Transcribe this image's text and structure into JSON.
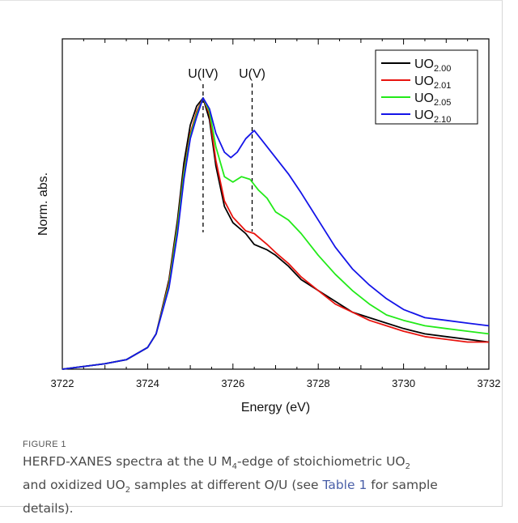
{
  "chart_data": {
    "type": "line",
    "xlabel": "Energy (eV)",
    "ylabel": "Norm. abs.",
    "xlim": [
      3722,
      3732
    ],
    "x_ticks": [
      "3722",
      "3724",
      "3726",
      "3728",
      "3730",
      "3732"
    ],
    "annotations": [
      {
        "label": "U(IV)",
        "x": 3725.3
      },
      {
        "label": "U(V)",
        "x": 3726.45
      }
    ],
    "legend_position": "top-right",
    "series": [
      {
        "name": "UO",
        "sub": "2.00",
        "color": "#000000",
        "x": [
          3722,
          3723,
          3723.5,
          3724,
          3724.2,
          3724.5,
          3724.7,
          3724.85,
          3725,
          3725.15,
          3725.3,
          3725.45,
          3725.6,
          3725.8,
          3726,
          3726.3,
          3726.5,
          3726.8,
          3727,
          3727.3,
          3727.6,
          3728,
          3728.4,
          3728.8,
          3729.2,
          3729.6,
          3730,
          3730.5,
          3731,
          3731.5,
          3732
        ],
        "y": [
          0,
          0.02,
          0.035,
          0.08,
          0.13,
          0.33,
          0.55,
          0.76,
          0.9,
          0.97,
          1.0,
          0.92,
          0.75,
          0.6,
          0.54,
          0.5,
          0.46,
          0.44,
          0.42,
          0.38,
          0.33,
          0.29,
          0.25,
          0.21,
          0.19,
          0.17,
          0.15,
          0.13,
          0.12,
          0.11,
          0.1
        ]
      },
      {
        "name": "UO",
        "sub": "2.01",
        "color": "#e8140f",
        "x": [
          3722,
          3723,
          3723.5,
          3724,
          3724.2,
          3724.5,
          3724.7,
          3724.85,
          3725,
          3725.15,
          3725.3,
          3725.45,
          3725.6,
          3725.8,
          3726,
          3726.3,
          3726.5,
          3726.8,
          3727,
          3727.3,
          3727.6,
          3728,
          3728.4,
          3728.8,
          3729.2,
          3729.6,
          3730,
          3730.5,
          3731,
          3731.5,
          3732
        ],
        "y": [
          0,
          0.02,
          0.035,
          0.08,
          0.13,
          0.32,
          0.53,
          0.73,
          0.87,
          0.95,
          1.0,
          0.94,
          0.77,
          0.62,
          0.56,
          0.51,
          0.5,
          0.46,
          0.43,
          0.39,
          0.34,
          0.29,
          0.24,
          0.21,
          0.18,
          0.16,
          0.14,
          0.12,
          0.11,
          0.1,
          0.1
        ]
      },
      {
        "name": "UO",
        "sub": "2.05",
        "color": "#22ea18",
        "x": [
          3722,
          3723,
          3723.5,
          3724,
          3724.2,
          3724.5,
          3724.7,
          3724.85,
          3725,
          3725.15,
          3725.3,
          3725.45,
          3725.6,
          3725.8,
          3726,
          3726.2,
          3726.4,
          3726.6,
          3726.8,
          3727,
          3727.3,
          3727.6,
          3728,
          3728.4,
          3728.8,
          3729.2,
          3729.6,
          3730,
          3730.5,
          3731,
          3731.5,
          3732
        ],
        "y": [
          0,
          0.02,
          0.035,
          0.08,
          0.13,
          0.31,
          0.52,
          0.72,
          0.86,
          0.94,
          1.0,
          0.95,
          0.82,
          0.71,
          0.69,
          0.71,
          0.7,
          0.66,
          0.63,
          0.58,
          0.55,
          0.5,
          0.42,
          0.35,
          0.29,
          0.24,
          0.2,
          0.18,
          0.16,
          0.15,
          0.14,
          0.13
        ]
      },
      {
        "name": "UO",
        "sub": "2.10",
        "color": "#1414e8",
        "x": [
          3722,
          3723,
          3723.5,
          3724,
          3724.2,
          3724.5,
          3724.7,
          3724.85,
          3725,
          3725.15,
          3725.3,
          3725.45,
          3725.6,
          3725.8,
          3725.95,
          3726.1,
          3726.3,
          3726.5,
          3726.7,
          3727,
          3727.3,
          3727.6,
          3728,
          3728.4,
          3728.8,
          3729.2,
          3729.6,
          3730,
          3730.5,
          3731,
          3731.5,
          3732
        ],
        "y": [
          0,
          0.02,
          0.035,
          0.08,
          0.13,
          0.3,
          0.5,
          0.7,
          0.85,
          0.93,
          1.0,
          0.96,
          0.87,
          0.8,
          0.78,
          0.8,
          0.85,
          0.88,
          0.84,
          0.78,
          0.72,
          0.65,
          0.55,
          0.45,
          0.37,
          0.31,
          0.26,
          0.22,
          0.19,
          0.18,
          0.17,
          0.16
        ]
      }
    ]
  },
  "caption": {
    "label": "FIGURE 1",
    "t1": "HERFD-XANES spectra at the U M",
    "t1_sub": "4",
    "t2": "-edge of stoichiometric UO",
    "t2_sub": "2",
    "t3": "and oxidized UO",
    "t3_sub": "2",
    "t4": " samples at different O/U (see ",
    "link": "Table 1",
    "t5": " for sample details)."
  }
}
